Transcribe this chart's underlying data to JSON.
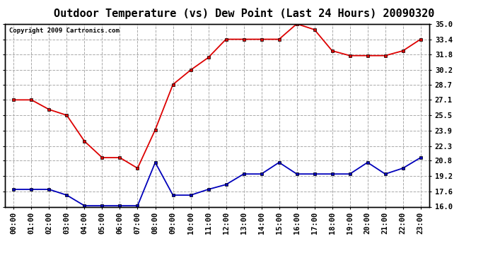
{
  "title": "Outdoor Temperature (vs) Dew Point (Last 24 Hours) 20090320",
  "copyright": "Copyright 2009 Cartronics.com",
  "x_labels": [
    "00:00",
    "01:00",
    "02:00",
    "03:00",
    "04:00",
    "05:00",
    "06:00",
    "07:00",
    "08:00",
    "09:00",
    "10:00",
    "11:00",
    "12:00",
    "13:00",
    "14:00",
    "15:00",
    "16:00",
    "17:00",
    "18:00",
    "19:00",
    "20:00",
    "21:00",
    "22:00",
    "23:00"
  ],
  "temp_data": [
    27.1,
    27.1,
    26.1,
    25.5,
    22.8,
    21.1,
    21.1,
    20.0,
    24.0,
    28.7,
    30.2,
    31.5,
    33.4,
    33.4,
    33.4,
    33.4,
    35.0,
    34.4,
    32.2,
    31.7,
    31.7,
    31.7,
    32.2,
    33.4
  ],
  "dew_data": [
    17.8,
    17.8,
    17.8,
    17.2,
    16.1,
    16.1,
    16.1,
    16.1,
    20.6,
    17.2,
    17.2,
    17.8,
    18.3,
    19.4,
    19.4,
    20.6,
    19.4,
    19.4,
    19.4,
    19.4,
    20.6,
    19.4,
    20.0,
    21.1
  ],
  "temp_color": "#dd0000",
  "dew_color": "#0000bb",
  "bg_color": "#ffffff",
  "plot_bg_color": "#ffffff",
  "grid_color": "#aaaaaa",
  "ylim_min": 16.0,
  "ylim_max": 35.0,
  "yticks": [
    16.0,
    17.6,
    19.2,
    20.8,
    22.3,
    23.9,
    25.5,
    27.1,
    28.7,
    30.2,
    31.8,
    33.4,
    35.0
  ],
  "title_fontsize": 11,
  "tick_fontsize": 7.5,
  "copyright_fontsize": 6.5
}
